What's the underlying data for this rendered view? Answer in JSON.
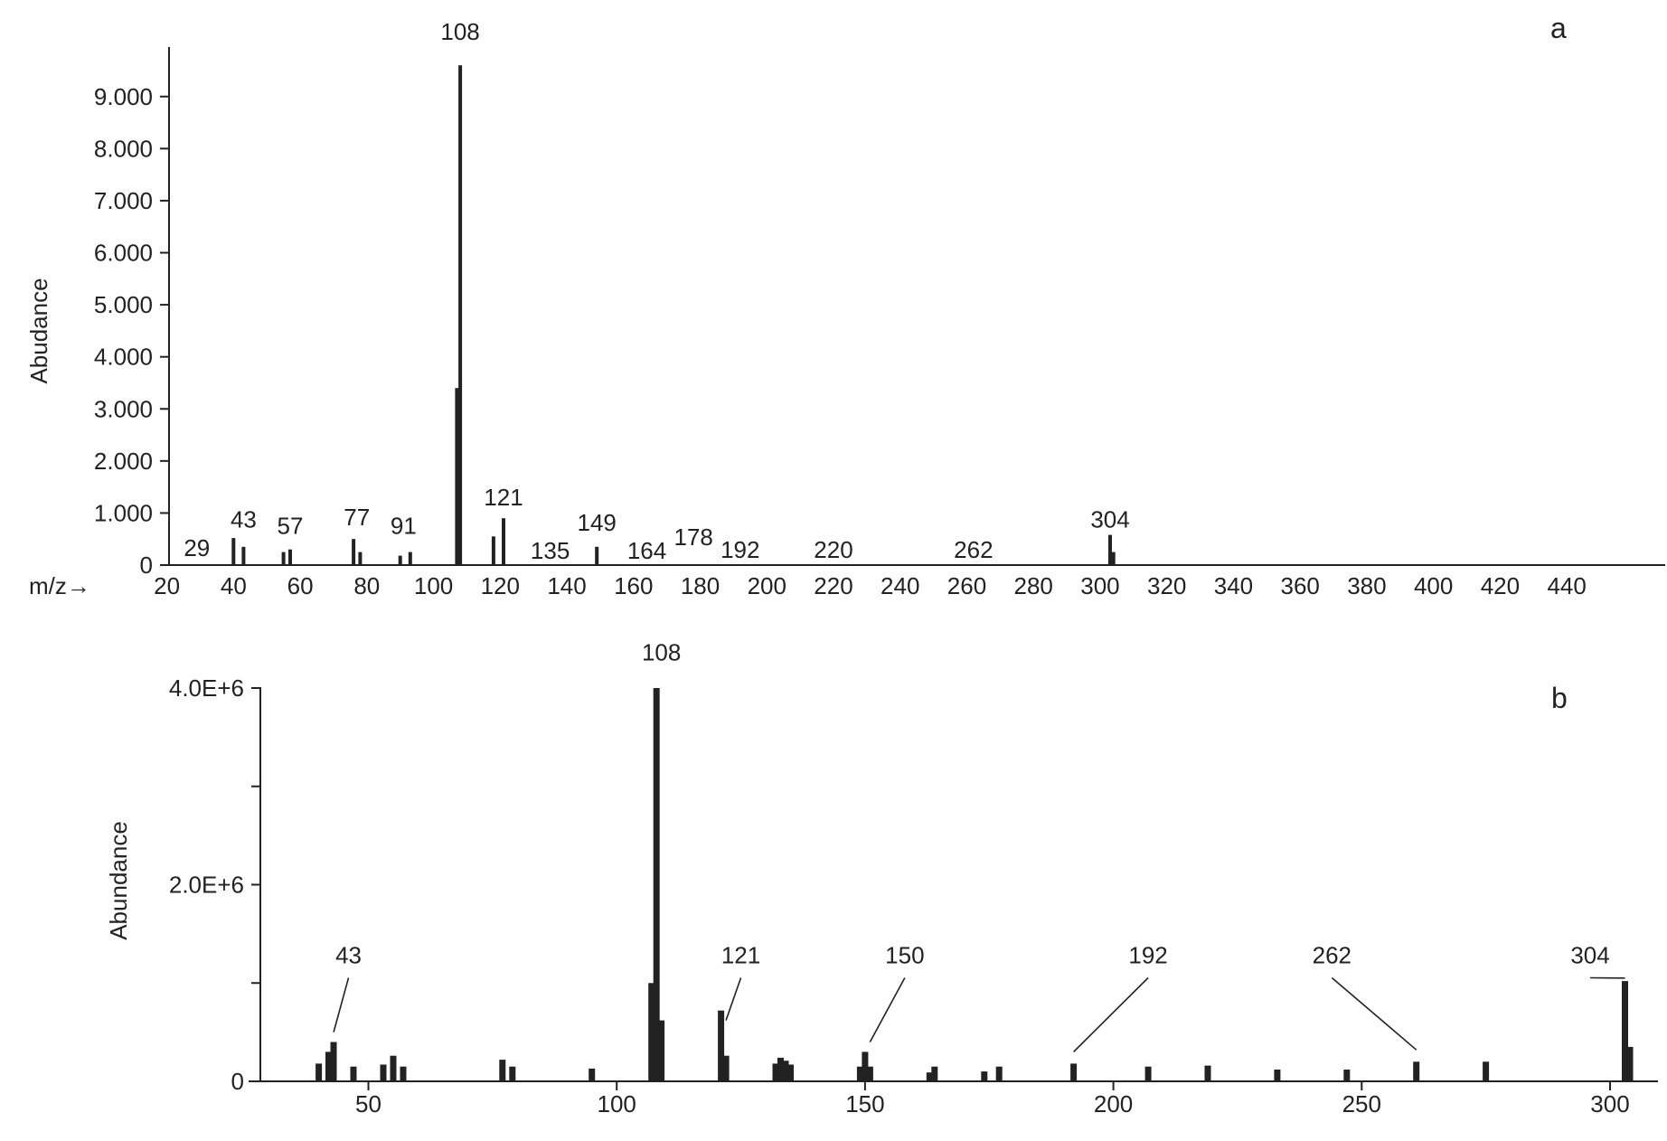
{
  "chart_data": [
    {
      "type": "bar",
      "panel_label": "a",
      "ylabel": "Abudance",
      "xlabel": "m/z→",
      "xlim": [
        20,
        450
      ],
      "ylim": [
        0,
        9600
      ],
      "x_ticks": [
        20,
        40,
        60,
        80,
        100,
        120,
        140,
        160,
        180,
        200,
        220,
        240,
        260,
        280,
        300,
        320,
        340,
        360,
        380,
        400,
        420,
        440
      ],
      "y_ticks": [
        0,
        1000,
        2000,
        3000,
        4000,
        5000,
        6000,
        7000,
        8000,
        9000
      ],
      "y_tick_labels": [
        "0",
        "1.000",
        "2.000",
        "3.000",
        "4.000",
        "5.000",
        "6.000",
        "7.000",
        "8.000",
        "9.000"
      ],
      "grid": false,
      "legend": "none",
      "peaks": [
        {
          "x": 40,
          "y": 520
        },
        {
          "x": 43,
          "y": 350
        },
        {
          "x": 55,
          "y": 250
        },
        {
          "x": 57,
          "y": 300
        },
        {
          "x": 76,
          "y": 500
        },
        {
          "x": 78,
          "y": 250
        },
        {
          "x": 90,
          "y": 180
        },
        {
          "x": 93,
          "y": 250
        },
        {
          "x": 107,
          "y": 3400
        },
        {
          "x": 108,
          "y": 9600
        },
        {
          "x": 118,
          "y": 550
        },
        {
          "x": 121,
          "y": 900
        },
        {
          "x": 149,
          "y": 350
        },
        {
          "x": 303,
          "y": 580
        },
        {
          "x": 304,
          "y": 250
        }
      ],
      "peak_labels": [
        {
          "text": "29",
          "x": 29,
          "y": 170
        },
        {
          "text": "43",
          "x": 43,
          "y": 720
        },
        {
          "text": "57",
          "x": 57,
          "y": 600
        },
        {
          "text": "77",
          "x": 77,
          "y": 760
        },
        {
          "text": "91",
          "x": 91,
          "y": 600
        },
        {
          "text": "108",
          "x": 108,
          "y": 10090
        },
        {
          "text": "121",
          "x": 121,
          "y": 1150
        },
        {
          "text": "135",
          "x": 135,
          "y": 120
        },
        {
          "text": "149",
          "x": 149,
          "y": 660
        },
        {
          "text": "164",
          "x": 164,
          "y": 120
        },
        {
          "text": "178",
          "x": 178,
          "y": 380
        },
        {
          "text": "192",
          "x": 192,
          "y": 140
        },
        {
          "text": "220",
          "x": 220,
          "y": 140
        },
        {
          "text": "262",
          "x": 262,
          "y": 140
        },
        {
          "text": "304",
          "x": 303,
          "y": 720
        }
      ]
    },
    {
      "type": "bar",
      "panel_label": "b",
      "ylabel": "Abundance",
      "xlabel": "",
      "xlim": [
        30,
        310
      ],
      "ylim": [
        0,
        4000000
      ],
      "x_ticks": [
        50,
        100,
        150,
        200,
        250,
        300
      ],
      "y_ticks": [
        0,
        1000000,
        2000000,
        3000000,
        4000000
      ],
      "y_tick_labels": [
        "0",
        "",
        "2.0E+6",
        "",
        "4.0E+6"
      ],
      "grid": false,
      "legend": "none",
      "peaks": [
        {
          "x": 40,
          "y": 180000
        },
        {
          "x": 42,
          "y": 300000
        },
        {
          "x": 43,
          "y": 400000
        },
        {
          "x": 47,
          "y": 150000
        },
        {
          "x": 53,
          "y": 170000
        },
        {
          "x": 55,
          "y": 260000
        },
        {
          "x": 57,
          "y": 150000
        },
        {
          "x": 77,
          "y": 220000
        },
        {
          "x": 79,
          "y": 150000
        },
        {
          "x": 95,
          "y": 130000
        },
        {
          "x": 107,
          "y": 1000000
        },
        {
          "x": 108,
          "y": 4000000
        },
        {
          "x": 109,
          "y": 620000
        },
        {
          "x": 121,
          "y": 720000
        },
        {
          "x": 122,
          "y": 260000
        },
        {
          "x": 132,
          "y": 180000
        },
        {
          "x": 133,
          "y": 240000
        },
        {
          "x": 134,
          "y": 210000
        },
        {
          "x": 135,
          "y": 170000
        },
        {
          "x": 149,
          "y": 150000
        },
        {
          "x": 150,
          "y": 300000
        },
        {
          "x": 151,
          "y": 150000
        },
        {
          "x": 163,
          "y": 90000
        },
        {
          "x": 164,
          "y": 150000
        },
        {
          "x": 174,
          "y": 100000
        },
        {
          "x": 177,
          "y": 150000
        },
        {
          "x": 192,
          "y": 180000
        },
        {
          "x": 207,
          "y": 150000
        },
        {
          "x": 219,
          "y": 160000
        },
        {
          "x": 233,
          "y": 120000
        },
        {
          "x": 247,
          "y": 120000
        },
        {
          "x": 261,
          "y": 200000
        },
        {
          "x": 275,
          "y": 200000
        },
        {
          "x": 303,
          "y": 1020000
        },
        {
          "x": 304,
          "y": 350000
        }
      ],
      "peak_labels": [
        {
          "text": "43",
          "x": 46,
          "y": 1200000,
          "leader_to": [
            43,
            500000
          ]
        },
        {
          "text": "108",
          "x": 109,
          "y": 4280000
        },
        {
          "text": "121",
          "x": 125,
          "y": 1200000,
          "leader_to": [
            122,
            620000
          ]
        },
        {
          "text": "150",
          "x": 158,
          "y": 1200000,
          "leader_to": [
            151,
            400000
          ]
        },
        {
          "text": "192",
          "x": 207,
          "y": 1200000,
          "leader_to": [
            192,
            300000
          ]
        },
        {
          "text": "262",
          "x": 244,
          "y": 1200000,
          "leader_to": [
            261,
            320000
          ]
        },
        {
          "text": "304",
          "x": 296,
          "y": 1200000,
          "leader_to": [
            303,
            1050000
          ]
        }
      ]
    }
  ]
}
